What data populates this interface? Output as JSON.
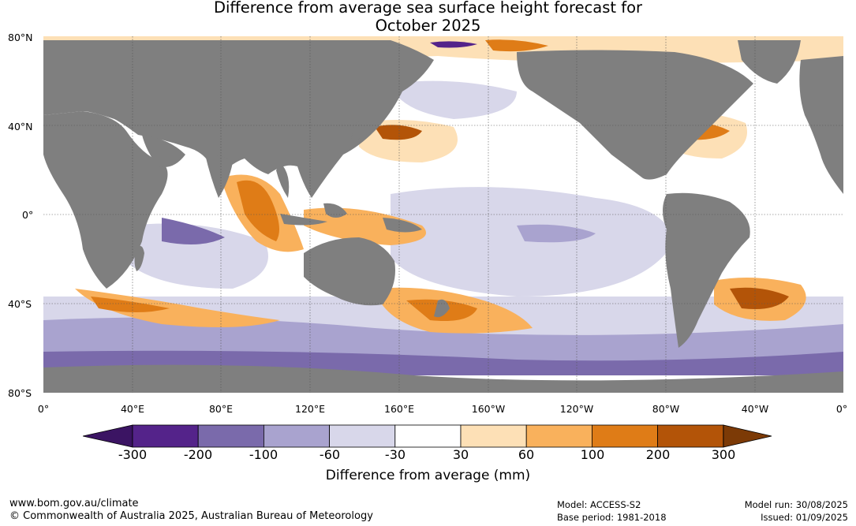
{
  "title": {
    "line1": "Difference from average sea surface height forecast for",
    "line2": "October 2025"
  },
  "lat_labels": [
    "80°N",
    "40°N",
    "0°",
    "40°S",
    "80°S"
  ],
  "lon_labels": [
    "0°",
    "40°E",
    "80°E",
    "120°E",
    "160°E",
    "160°W",
    "120°W",
    "80°W",
    "40°W",
    "0°"
  ],
  "legend": {
    "title": "Difference from average (mm)",
    "tick_labels": [
      "-300",
      "-200",
      "-100",
      "-60",
      "-30",
      "30",
      "60",
      "100",
      "200",
      "300"
    ],
    "colors": [
      "#3b1463",
      "#54238a",
      "#7a6aab",
      "#a9a3cf",
      "#d8d7ea",
      "#ffffff",
      "#fde0b6",
      "#f9b15c",
      "#df7c17",
      "#b35408",
      "#7c3a06"
    ]
  },
  "land_color": "#7f7f7f",
  "footer": {
    "url": "www.bom.gov.au/climate",
    "copyright": "© Commonwealth of Australia 2025, Australian Bureau of Meteorology",
    "model": "Model: ACCESS-S2",
    "base_period": "Base period: 1981-2018",
    "model_run": "Model run: 30/08/2025",
    "issued": "Issued: 01/09/2025"
  }
}
